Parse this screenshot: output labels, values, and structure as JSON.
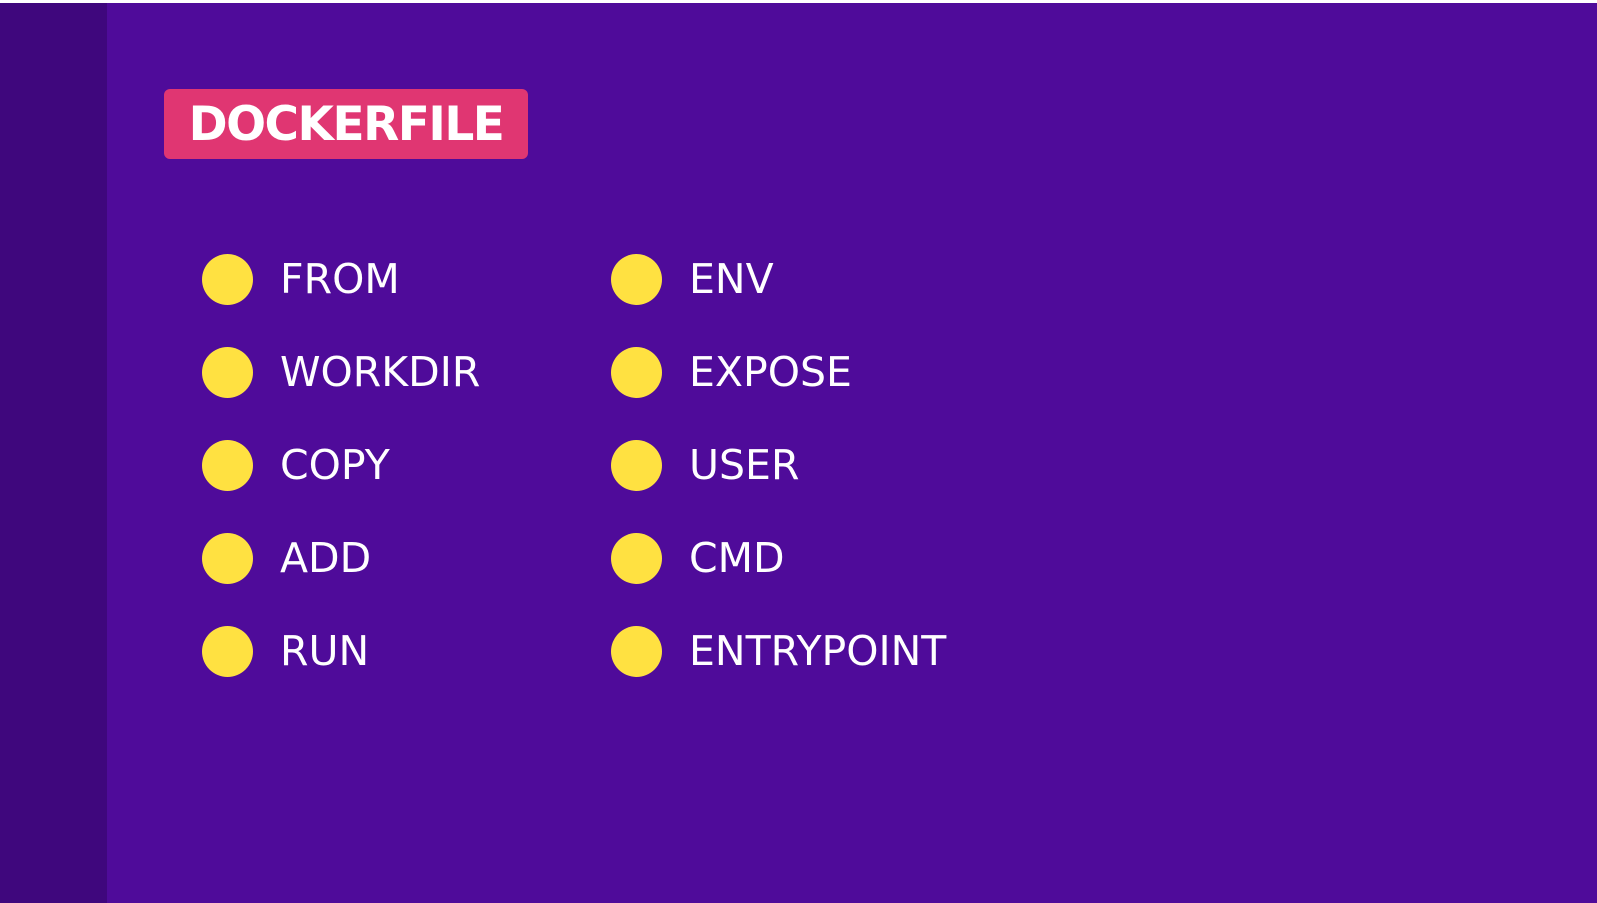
{
  "title": "DOCKERFILE",
  "colors": {
    "background": "#4f0b9a",
    "left_band": "#3f077d",
    "badge": "#e03672",
    "bullet": "#ffe141",
    "text": "#ffffff"
  },
  "columns": [
    {
      "items": [
        {
          "label": "FROM"
        },
        {
          "label": "WORKDIR"
        },
        {
          "label": "COPY"
        },
        {
          "label": "ADD"
        },
        {
          "label": "RUN"
        }
      ]
    },
    {
      "items": [
        {
          "label": "ENV"
        },
        {
          "label": "EXPOSE"
        },
        {
          "label": "USER"
        },
        {
          "label": "CMD"
        },
        {
          "label": "ENTRYPOINT"
        }
      ]
    }
  ]
}
